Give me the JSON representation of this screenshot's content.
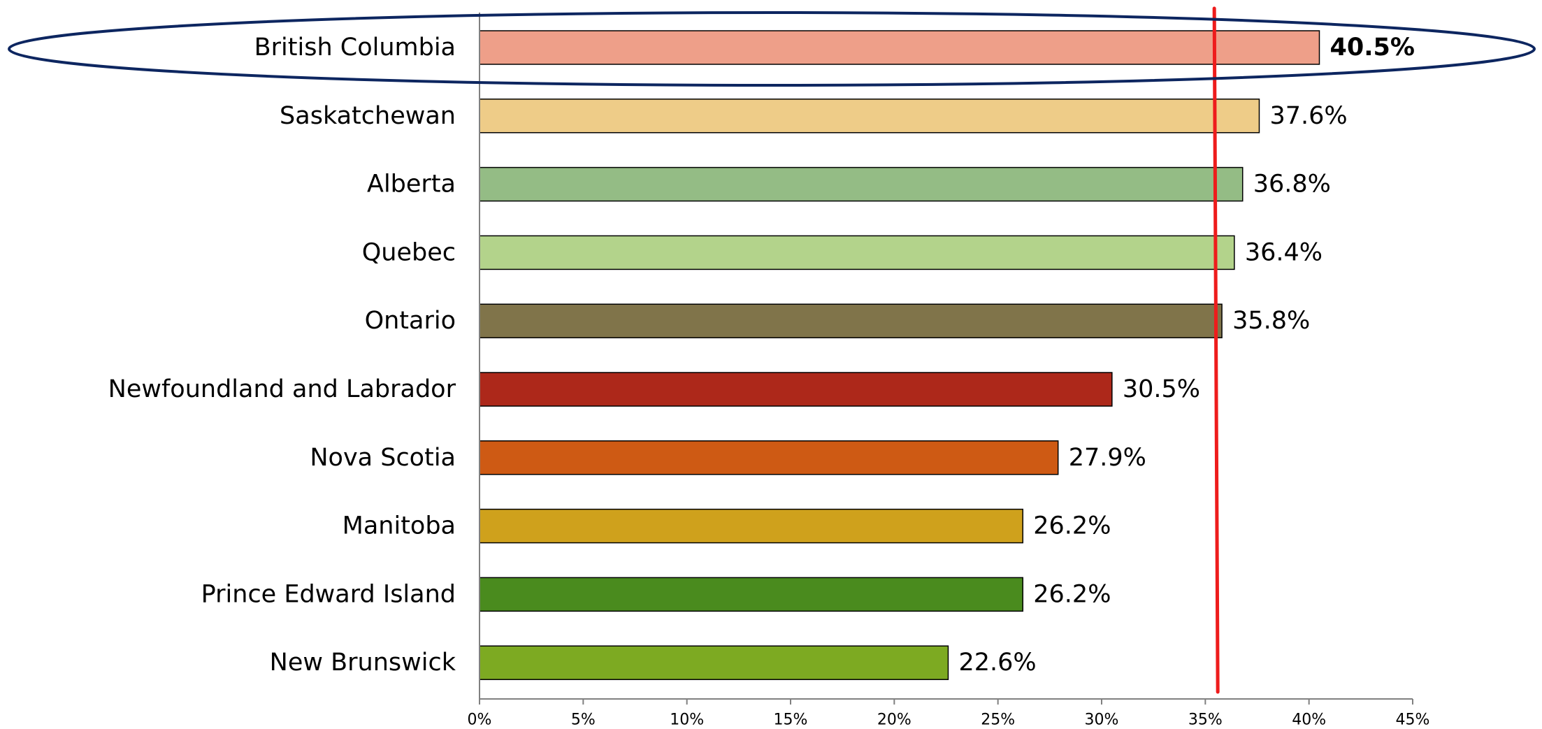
{
  "chart_data": {
    "type": "bar",
    "orientation": "horizontal",
    "categories": [
      "British Columbia",
      "Saskatchewan",
      "Alberta",
      "Quebec",
      "Ontario",
      "Newfoundland and Labrador",
      "Nova Scotia",
      "Manitoba",
      "Prince Edward Island",
      "New Brunswick"
    ],
    "values": [
      40.5,
      37.6,
      36.8,
      36.4,
      35.8,
      30.5,
      27.9,
      26.2,
      26.2,
      22.6
    ],
    "value_labels": [
      "40.5%",
      "37.6%",
      "36.8%",
      "36.4%",
      "35.8%",
      "30.5%",
      "27.9%",
      "26.2%",
      "26.2%",
      "22.6%"
    ],
    "bar_colors": [
      "#EE9F89",
      "#EECC88",
      "#94BC85",
      "#B3D38B",
      "#80744A",
      "#AD281A",
      "#CE5A14",
      "#CFA11C",
      "#4A8B1E",
      "#7DAA22"
    ],
    "highlight_index": 0,
    "highlight_outline_color": "#0D2660",
    "xlim": [
      0,
      45
    ],
    "x_ticks": [
      0,
      5,
      10,
      15,
      20,
      25,
      30,
      35,
      40,
      45
    ],
    "x_tick_labels": [
      "0%",
      "5%",
      "10%",
      "15%",
      "20%",
      "25%",
      "30%",
      "35%",
      "40%",
      "45%"
    ],
    "reference_line": {
      "value": 35.5,
      "color": "#EE1C1C"
    },
    "axis_color": "#808080",
    "grid": false,
    "title": "",
    "xlabel": "",
    "ylabel": ""
  }
}
